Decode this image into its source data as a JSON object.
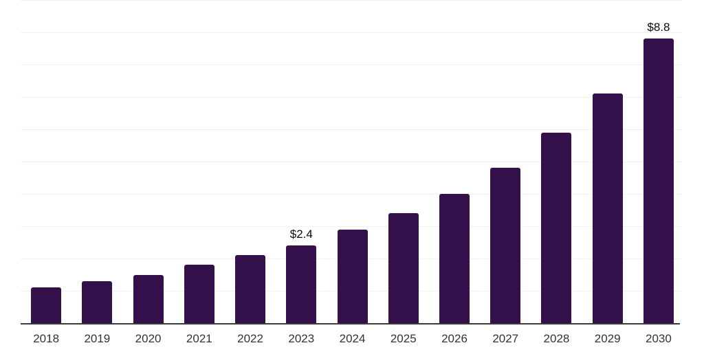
{
  "chart_data": {
    "type": "bar",
    "title": "",
    "xlabel": "",
    "ylabel": "",
    "categories": [
      "2018",
      "2019",
      "2020",
      "2021",
      "2022",
      "2023",
      "2024",
      "2025",
      "2026",
      "2027",
      "2028",
      "2029",
      "2030"
    ],
    "values": [
      1.1,
      1.3,
      1.5,
      1.8,
      2.1,
      2.4,
      2.9,
      3.4,
      4.0,
      4.8,
      5.9,
      7.1,
      8.8
    ],
    "point_labels": [
      "",
      "",
      "",
      "",
      "",
      "$2.4",
      "",
      "",
      "",
      "",
      "",
      "",
      "$8.8"
    ],
    "ylim": [
      0,
      10
    ],
    "gridline_step": 1,
    "grid": true,
    "legend": false,
    "y_tick_labels_visible": false,
    "colors": {
      "bar": "#35114B",
      "gridline": "#f1f1f3",
      "axis_line": "#3b3b3b",
      "tick_label": "#333333",
      "value_label": "#0a0a0a",
      "background": "#ffffff"
    }
  }
}
